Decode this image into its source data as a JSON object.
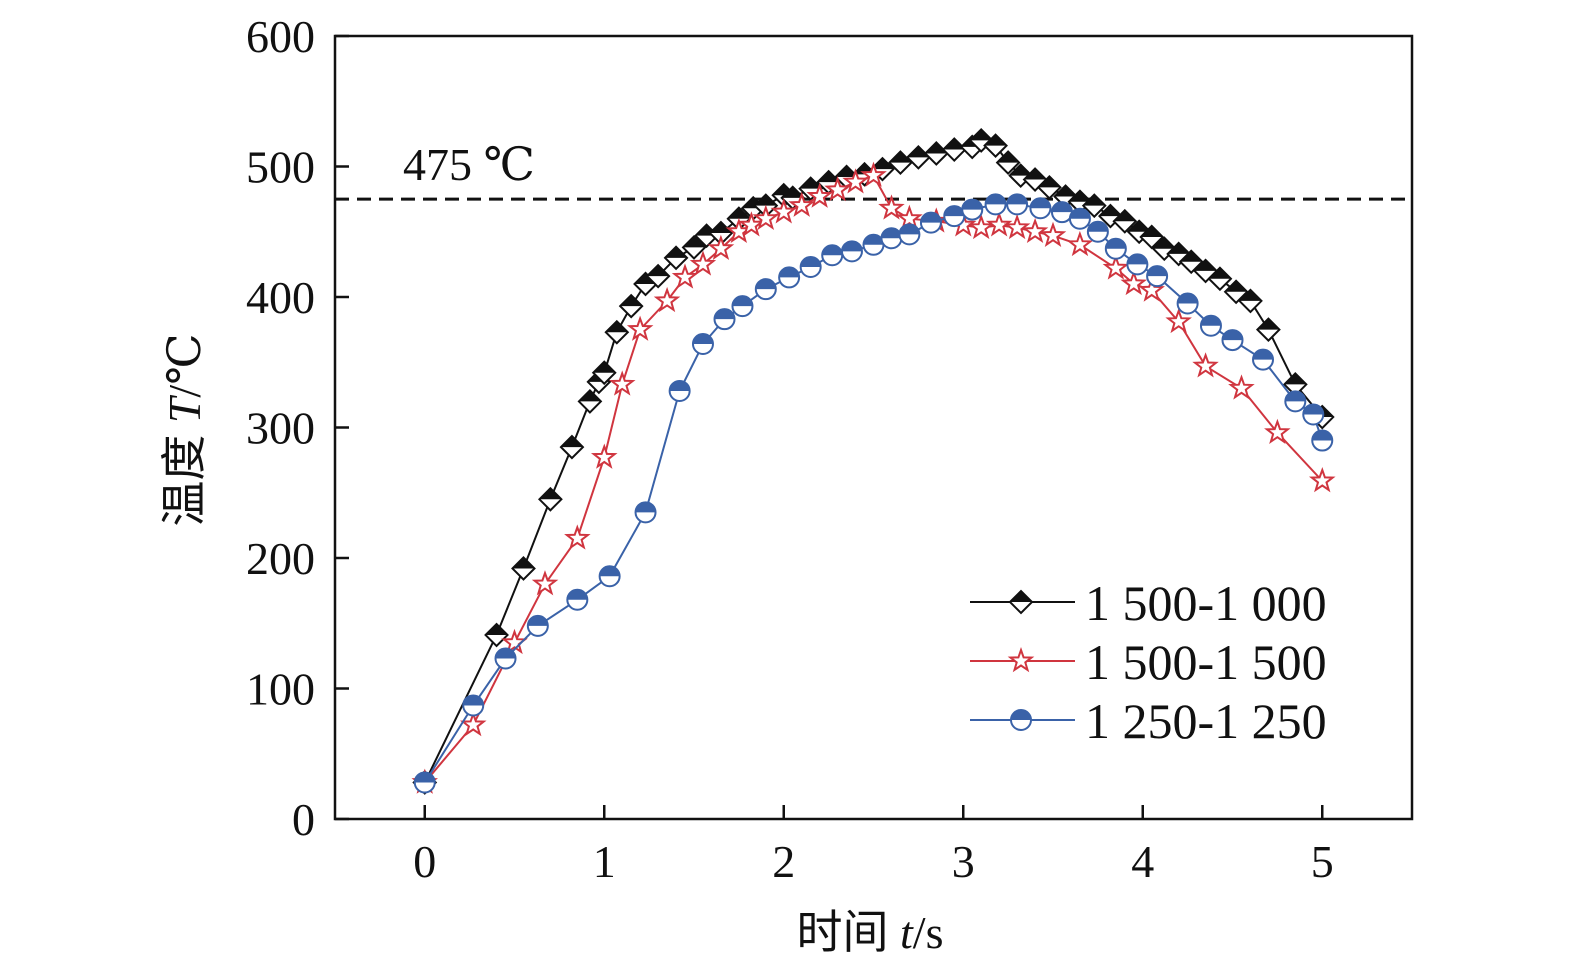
{
  "chart_data": {
    "type": "line",
    "title": "",
    "xlabel_prefix": "时间 ",
    "xlabel_var": "t",
    "xlabel_unit": "/s",
    "ylabel_prefix": "温度 ",
    "ylabel_var": "T",
    "ylabel_unit": "/℃",
    "xlim": [
      -0.5,
      5.5
    ],
    "ylim": [
      0,
      600
    ],
    "xticks": [
      0,
      1,
      2,
      3,
      4,
      5
    ],
    "yticks": [
      0,
      100,
      200,
      300,
      400,
      500,
      600
    ],
    "grid": false,
    "legend_position": "bottom-right",
    "reference_line": {
      "y": 475,
      "label": "475 ℃",
      "style": "dashed"
    },
    "series": [
      {
        "name": "1 500-1 000",
        "color": "#111111",
        "marker": "half-filled-diamond",
        "x": [
          0,
          0.4,
          0.55,
          0.7,
          0.82,
          0.92,
          0.97,
          1.0,
          1.07,
          1.15,
          1.23,
          1.3,
          1.4,
          1.5,
          1.57,
          1.65,
          1.75,
          1.83,
          1.9,
          2.0,
          2.05,
          2.15,
          2.25,
          2.35,
          2.45,
          2.55,
          2.65,
          2.75,
          2.85,
          2.95,
          3.05,
          3.1,
          3.18,
          3.25,
          3.32,
          3.4,
          3.48,
          3.57,
          3.65,
          3.73,
          3.82,
          3.9,
          3.98,
          4.05,
          4.12,
          4.2,
          4.27,
          4.35,
          4.43,
          4.52,
          4.6,
          4.7,
          4.85,
          5.0
        ],
        "y": [
          28,
          141,
          192,
          245,
          285,
          320,
          335,
          342,
          373,
          393,
          410,
          416,
          430,
          438,
          447,
          449,
          460,
          468,
          470,
          478,
          476,
          483,
          488,
          492,
          494,
          498,
          503,
          507,
          510,
          513,
          515,
          520,
          516,
          503,
          493,
          490,
          484,
          477,
          473,
          470,
          462,
          458,
          450,
          446,
          437,
          433,
          427,
          420,
          414,
          404,
          397,
          375,
          333,
          308
        ]
      },
      {
        "name": "1 500-1 500",
        "color": "#d0353f",
        "marker": "star",
        "x": [
          0,
          0.27,
          0.5,
          0.67,
          0.85,
          1.0,
          1.1,
          1.2,
          1.35,
          1.45,
          1.55,
          1.65,
          1.75,
          1.82,
          1.9,
          2.0,
          2.1,
          2.2,
          2.3,
          2.4,
          2.5,
          2.6,
          2.7,
          2.85,
          3.0,
          3.1,
          3.2,
          3.3,
          3.4,
          3.5,
          3.65,
          3.85,
          3.95,
          4.05,
          4.2,
          4.35,
          4.55,
          4.75,
          5.0
        ],
        "y": [
          28,
          72,
          135,
          180,
          215,
          277,
          333,
          375,
          397,
          415,
          425,
          437,
          450,
          455,
          460,
          465,
          470,
          477,
          482,
          488,
          493,
          468,
          460,
          458,
          455,
          453,
          455,
          453,
          450,
          447,
          440,
          422,
          410,
          405,
          381,
          347,
          330,
          296,
          259
        ]
      },
      {
        "name": "1 250-1 250",
        "color": "#3a62a8",
        "marker": "half-filled-circle",
        "x": [
          0,
          0.27,
          0.45,
          0.63,
          0.85,
          1.03,
          1.23,
          1.42,
          1.55,
          1.67,
          1.77,
          1.9,
          2.03,
          2.15,
          2.27,
          2.38,
          2.5,
          2.6,
          2.7,
          2.82,
          2.95,
          3.05,
          3.18,
          3.3,
          3.43,
          3.55,
          3.65,
          3.75,
          3.85,
          3.97,
          4.08,
          4.25,
          4.38,
          4.5,
          4.67,
          4.85,
          4.95,
          5.0
        ],
        "y": [
          28,
          87,
          123,
          148,
          168,
          186,
          235,
          328,
          364,
          383,
          393,
          406,
          415,
          423,
          432,
          435,
          440,
          445,
          448,
          457,
          462,
          467,
          471,
          471,
          468,
          465,
          460,
          450,
          437,
          425,
          416,
          395,
          378,
          367,
          352,
          320,
          310,
          290
        ]
      }
    ]
  }
}
